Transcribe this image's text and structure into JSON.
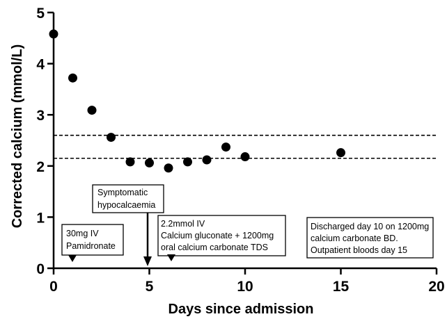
{
  "chart_data": {
    "type": "scatter",
    "title": "",
    "xlabel": "Days since admission",
    "ylabel": "Corrected calcium (mmol/L)",
    "xlim": [
      0,
      20
    ],
    "ylim": [
      0,
      5
    ],
    "xticks": [
      0,
      5,
      10,
      15,
      20
    ],
    "yticks": [
      0,
      1,
      2,
      3,
      4,
      5
    ],
    "x_tick_labels": [
      "0",
      "5",
      "10",
      "15",
      "20"
    ],
    "y_tick_labels": [
      "0",
      "1",
      "2",
      "3",
      "4",
      "5"
    ],
    "grid": false,
    "series": [
      {
        "x": [
          0,
          1,
          2,
          3,
          4,
          5,
          6,
          7,
          8,
          9,
          10,
          15
        ],
        "y": [
          4.58,
          3.72,
          3.09,
          2.56,
          2.08,
          2.06,
          1.96,
          2.08,
          2.12,
          2.37,
          2.18,
          2.26
        ],
        "color": "#000000"
      }
    ],
    "reference_lines": [
      {
        "y": 2.6,
        "style": "dashed"
      },
      {
        "y": 2.15,
        "style": "dashed"
      }
    ],
    "annotations": [
      {
        "lines": [
          "30mg IV",
          "Pamidronate"
        ],
        "marker": "arrowhead-down",
        "marker_x": 1
      },
      {
        "lines": [
          "Symptomatic",
          "hypocalcaemia"
        ],
        "marker": "arrow-down",
        "marker_x": 5
      },
      {
        "lines": [
          "2.2mmol IV",
          "Calcium gluconate + 1200mg",
          "oral calcium carbonate TDS"
        ],
        "marker": "arrowhead-down",
        "marker_x": 6.2
      },
      {
        "lines": [
          "Discharged day 10 on 1200mg",
          "calcium carbonate BD.",
          "Outpatient bloods day 15"
        ]
      }
    ]
  }
}
